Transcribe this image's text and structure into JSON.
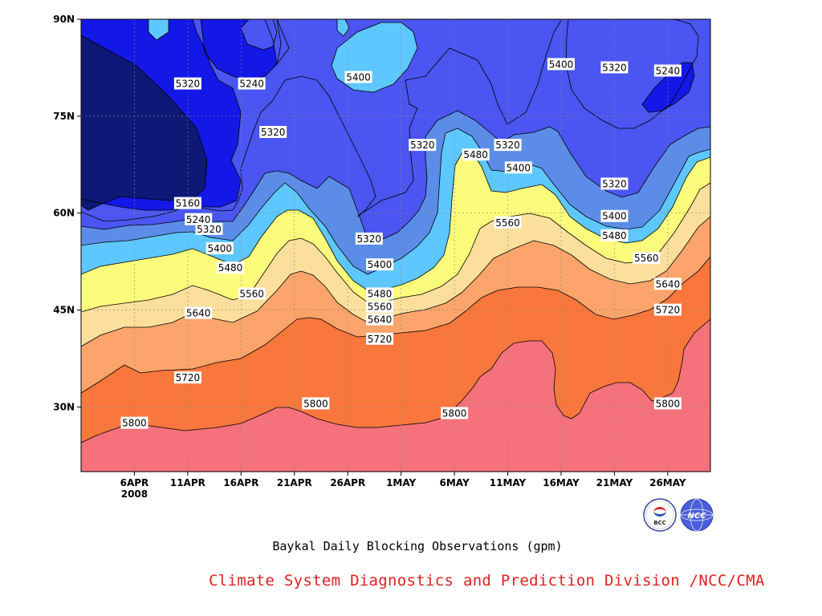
{
  "chart_data": {
    "type": "contour",
    "title": "Baykal Daily Blocking Observations (gpm)",
    "x_tick_labels": [
      "6APR",
      "11APR",
      "16APR",
      "21APR",
      "26APR",
      "1MAY",
      "6MAY",
      "11MAY",
      "16MAY",
      "21MAY",
      "26MAY"
    ],
    "x_tick_dates": [
      "2008-04-06",
      "2008-04-11",
      "2008-04-16",
      "2008-04-21",
      "2008-04-26",
      "2008-05-01",
      "2008-05-06",
      "2008-05-11",
      "2008-05-16",
      "2008-05-21",
      "2008-05-26"
    ],
    "x_year_label": "2008",
    "xlim": [
      "2008-04-01",
      "2008-05-30"
    ],
    "y_tick_labels": [
      "30N",
      "45N",
      "60N",
      "75N",
      "90N"
    ],
    "y_tick_values": [
      30,
      45,
      60,
      75,
      90
    ],
    "ylim": [
      20,
      90
    ],
    "grid": "dashed at ticks",
    "contour_levels": [
      5160,
      5240,
      5320,
      5400,
      5480,
      5560,
      5640,
      5720,
      5800
    ],
    "fill_colors": [
      "#0d1877",
      "#1418e6",
      "#4a55f2",
      "#5b8de8",
      "#5ec7ff",
      "#fbfb7c",
      "#fcdf9c",
      "#fca46b",
      "#f9763c",
      "#f5717c"
    ],
    "contour_labels": [
      {
        "value": "5320",
        "date": "2008-04-11",
        "lat": 80
      },
      {
        "value": "5240",
        "date": "2008-04-17",
        "lat": 80
      },
      {
        "value": "5400",
        "date": "2008-04-27",
        "lat": 81
      },
      {
        "value": "5400",
        "date": "2008-05-16",
        "lat": 83
      },
      {
        "value": "5320",
        "date": "2008-05-21",
        "lat": 82.5
      },
      {
        "value": "5240",
        "date": "2008-05-26",
        "lat": 82
      },
      {
        "value": "5320",
        "date": "2008-04-19",
        "lat": 72.5
      },
      {
        "value": "5320",
        "date": "2008-05-03",
        "lat": 70.5
      },
      {
        "value": "5320",
        "date": "2008-05-11",
        "lat": 70.5
      },
      {
        "value": "5480",
        "date": "2008-05-08",
        "lat": 69
      },
      {
        "value": "5400",
        "date": "2008-05-12",
        "lat": 67
      },
      {
        "value": "5320",
        "date": "2008-05-21",
        "lat": 64.5
      },
      {
        "value": "5160",
        "date": "2008-04-11",
        "lat": 61.5
      },
      {
        "value": "5240",
        "date": "2008-04-12",
        "lat": 59
      },
      {
        "value": "5320",
        "date": "2008-04-13",
        "lat": 57.5
      },
      {
        "value": "5400",
        "date": "2008-04-14",
        "lat": 54.5
      },
      {
        "value": "5480",
        "date": "2008-04-15",
        "lat": 51.5
      },
      {
        "value": "5560",
        "date": "2008-04-17",
        "lat": 47.5
      },
      {
        "value": "5320",
        "date": "2008-04-28",
        "lat": 56
      },
      {
        "value": "5400",
        "date": "2008-04-29",
        "lat": 52
      },
      {
        "value": "5480",
        "date": "2008-04-29",
        "lat": 47.5
      },
      {
        "value": "5560",
        "date": "2008-04-29",
        "lat": 45.5
      },
      {
        "value": "5640",
        "date": "2008-04-29",
        "lat": 43.5
      },
      {
        "value": "5720",
        "date": "2008-04-29",
        "lat": 40.5
      },
      {
        "value": "5560",
        "date": "2008-05-11",
        "lat": 58.5
      },
      {
        "value": "5400",
        "date": "2008-05-21",
        "lat": 59.5
      },
      {
        "value": "5480",
        "date": "2008-05-21",
        "lat": 56.5
      },
      {
        "value": "5560",
        "date": "2008-05-24",
        "lat": 53
      },
      {
        "value": "5640",
        "date": "2008-05-26",
        "lat": 49
      },
      {
        "value": "5720",
        "date": "2008-05-26",
        "lat": 45
      },
      {
        "value": "5640",
        "date": "2008-04-12",
        "lat": 44.5
      },
      {
        "value": "5720",
        "date": "2008-04-11",
        "lat": 34.5
      },
      {
        "value": "5800",
        "date": "2008-04-06",
        "lat": 27.5
      },
      {
        "value": "5800",
        "date": "2008-04-23",
        "lat": 30.5
      },
      {
        "value": "5800",
        "date": "2008-05-06",
        "lat": 29
      },
      {
        "value": "5800",
        "date": "2008-05-26",
        "lat": 30.5
      }
    ]
  },
  "caption": "Baykal Daily Blocking Observations (gpm)",
  "credit": "Climate System Diagnostics and Prediction Division /NCC/CMA",
  "logos": [
    {
      "name": "bcc-logo",
      "text": "BCC"
    },
    {
      "name": "ncc-logo",
      "text": "NCC"
    }
  ]
}
